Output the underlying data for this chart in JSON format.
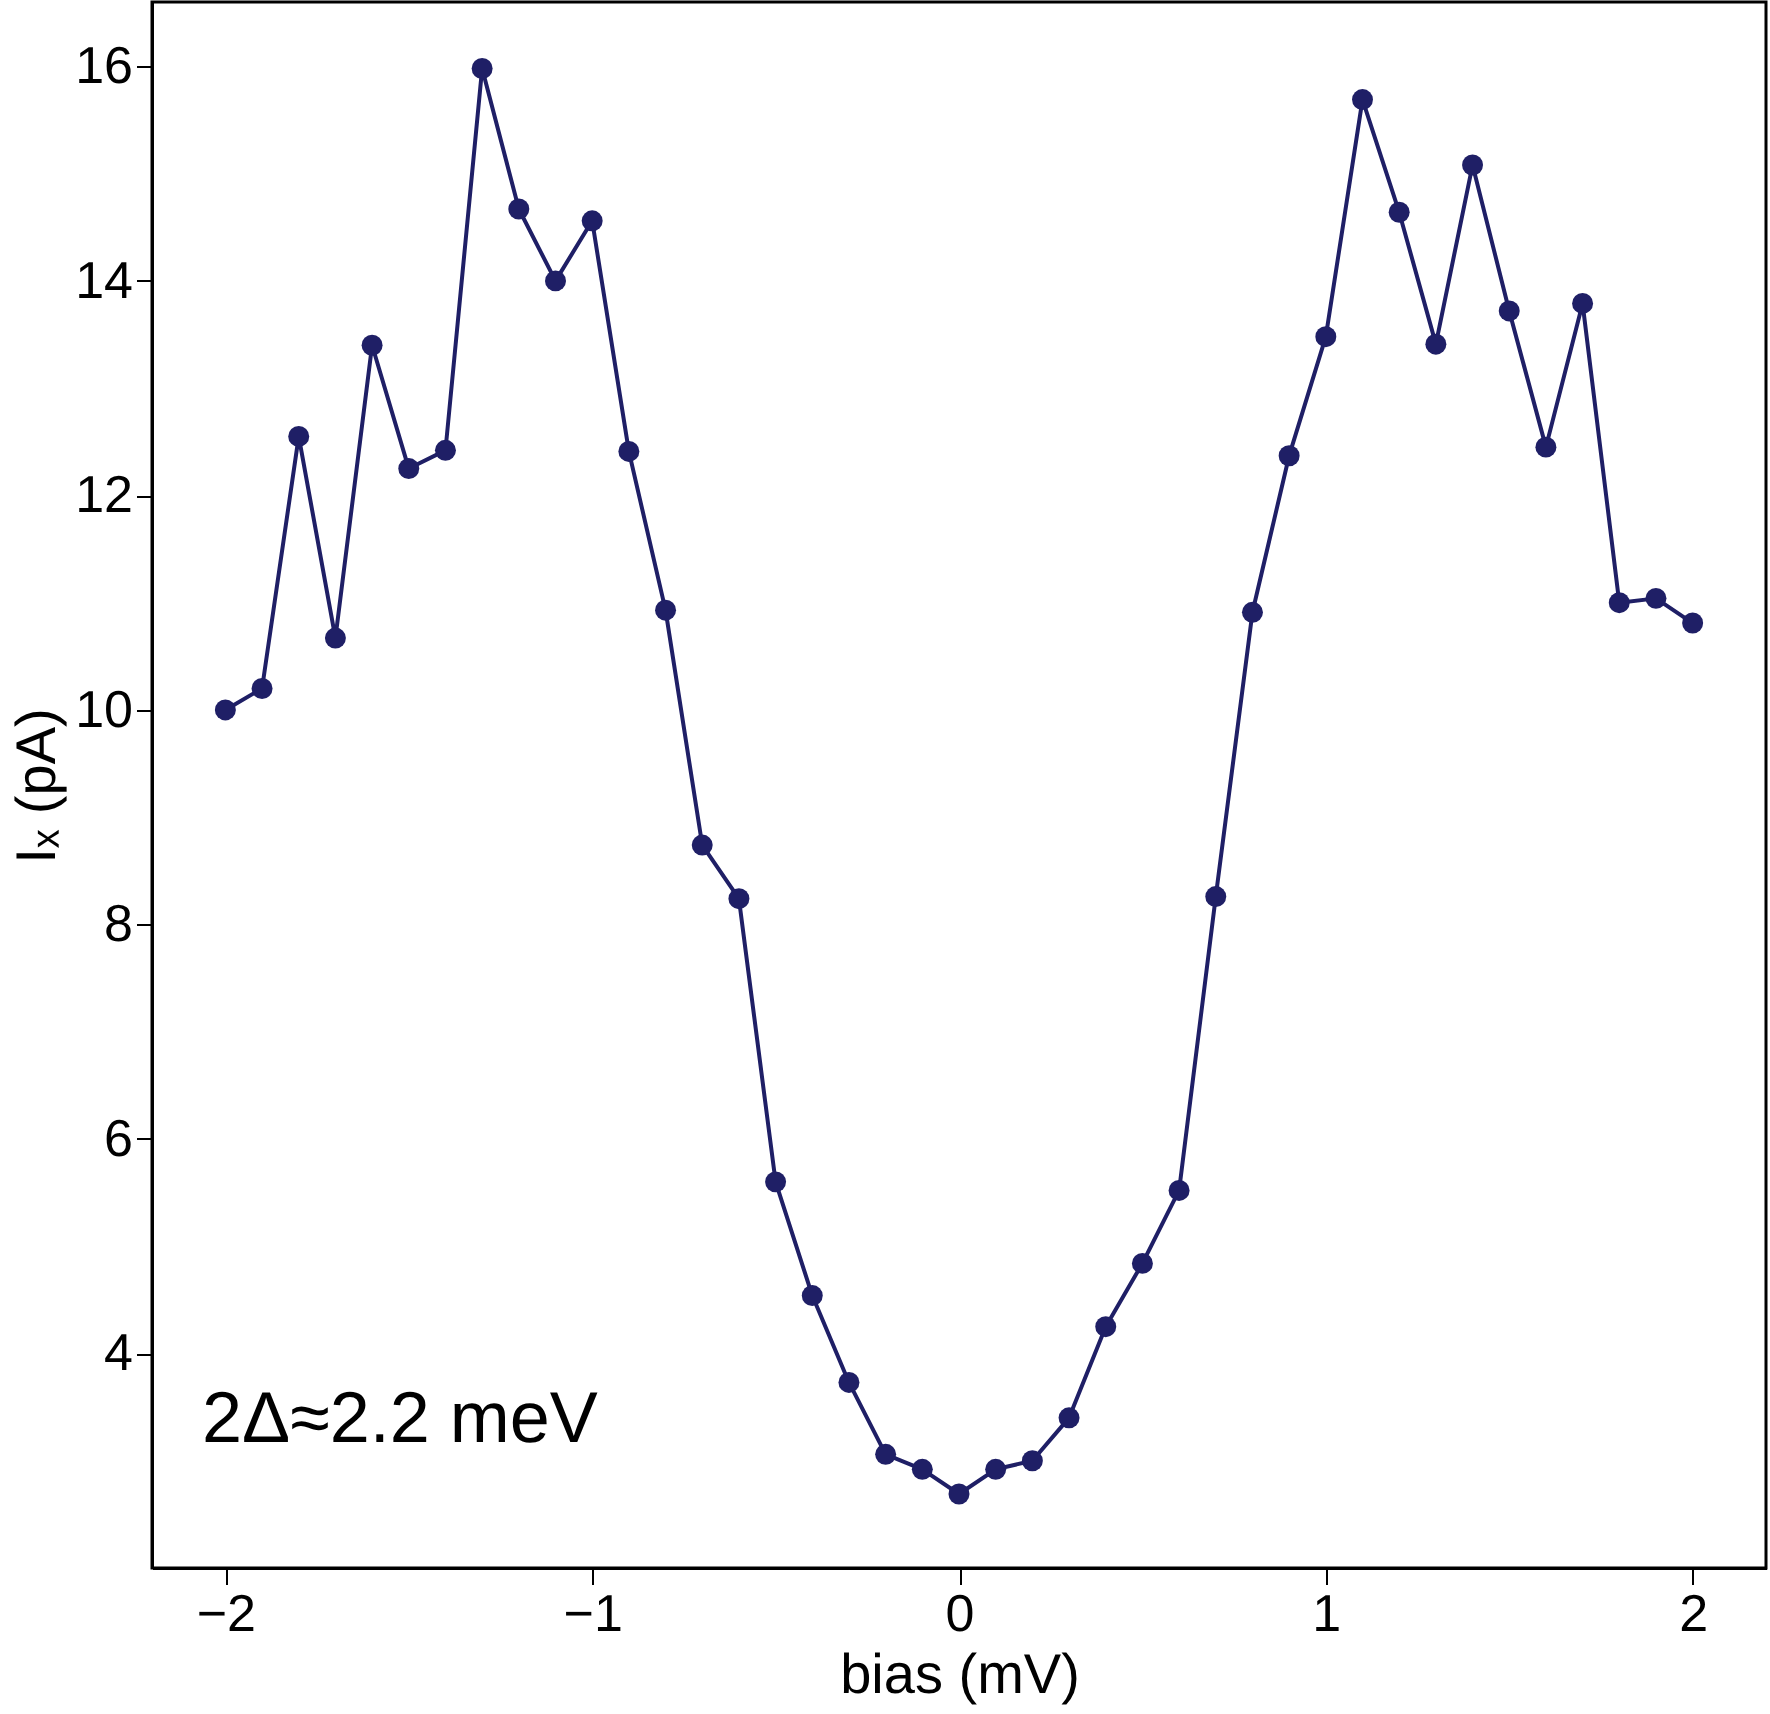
{
  "chart_data": {
    "type": "line",
    "xlabel": "bias (mV)",
    "ylabel": "Iₓ (pA)",
    "annotations": [
      "2Δ≈2.2 meV"
    ],
    "x": [
      -2.0,
      -1.9,
      -1.8,
      -1.7,
      -1.6,
      -1.5,
      -1.4,
      -1.3,
      -1.2,
      -1.1,
      -1.0,
      -0.9,
      -0.8,
      -0.7,
      -0.6,
      -0.5,
      -0.4,
      -0.3,
      -0.2,
      -0.1,
      0.0,
      0.1,
      0.2,
      0.3,
      0.4,
      0.5,
      0.6,
      0.7,
      0.8,
      0.9,
      1.0,
      1.1,
      1.2,
      1.3,
      1.4,
      1.5,
      1.6,
      1.7,
      1.8,
      1.9,
      2.0
    ],
    "series": [
      {
        "color": "#1f1f66",
        "values": [
          10.0,
          10.2,
          12.55,
          10.67,
          13.4,
          12.25,
          12.42,
          15.98,
          14.67,
          14.0,
          14.56,
          12.41,
          10.93,
          8.74,
          8.24,
          5.6,
          4.54,
          3.73,
          3.06,
          2.92,
          2.69,
          2.92,
          3.0,
          3.4,
          4.25,
          4.84,
          5.52,
          8.26,
          10.91,
          12.37,
          13.48,
          15.69,
          14.64,
          13.41,
          15.08,
          13.72,
          12.45,
          13.79,
          11.0,
          11.04,
          10.81
        ]
      }
    ],
    "xlim": [
      -2.2,
      2.2
    ],
    "xticks": [
      {
        "value": -2,
        "label": "−2"
      },
      {
        "value": -1,
        "label": "−1"
      },
      0,
      1,
      2
    ],
    "ylim": [
      2.0,
      16.6
    ],
    "yticks": [
      4,
      6,
      8,
      10,
      12,
      14,
      16
    ],
    "grid": false,
    "marker": "circle",
    "line_style": "solid"
  }
}
